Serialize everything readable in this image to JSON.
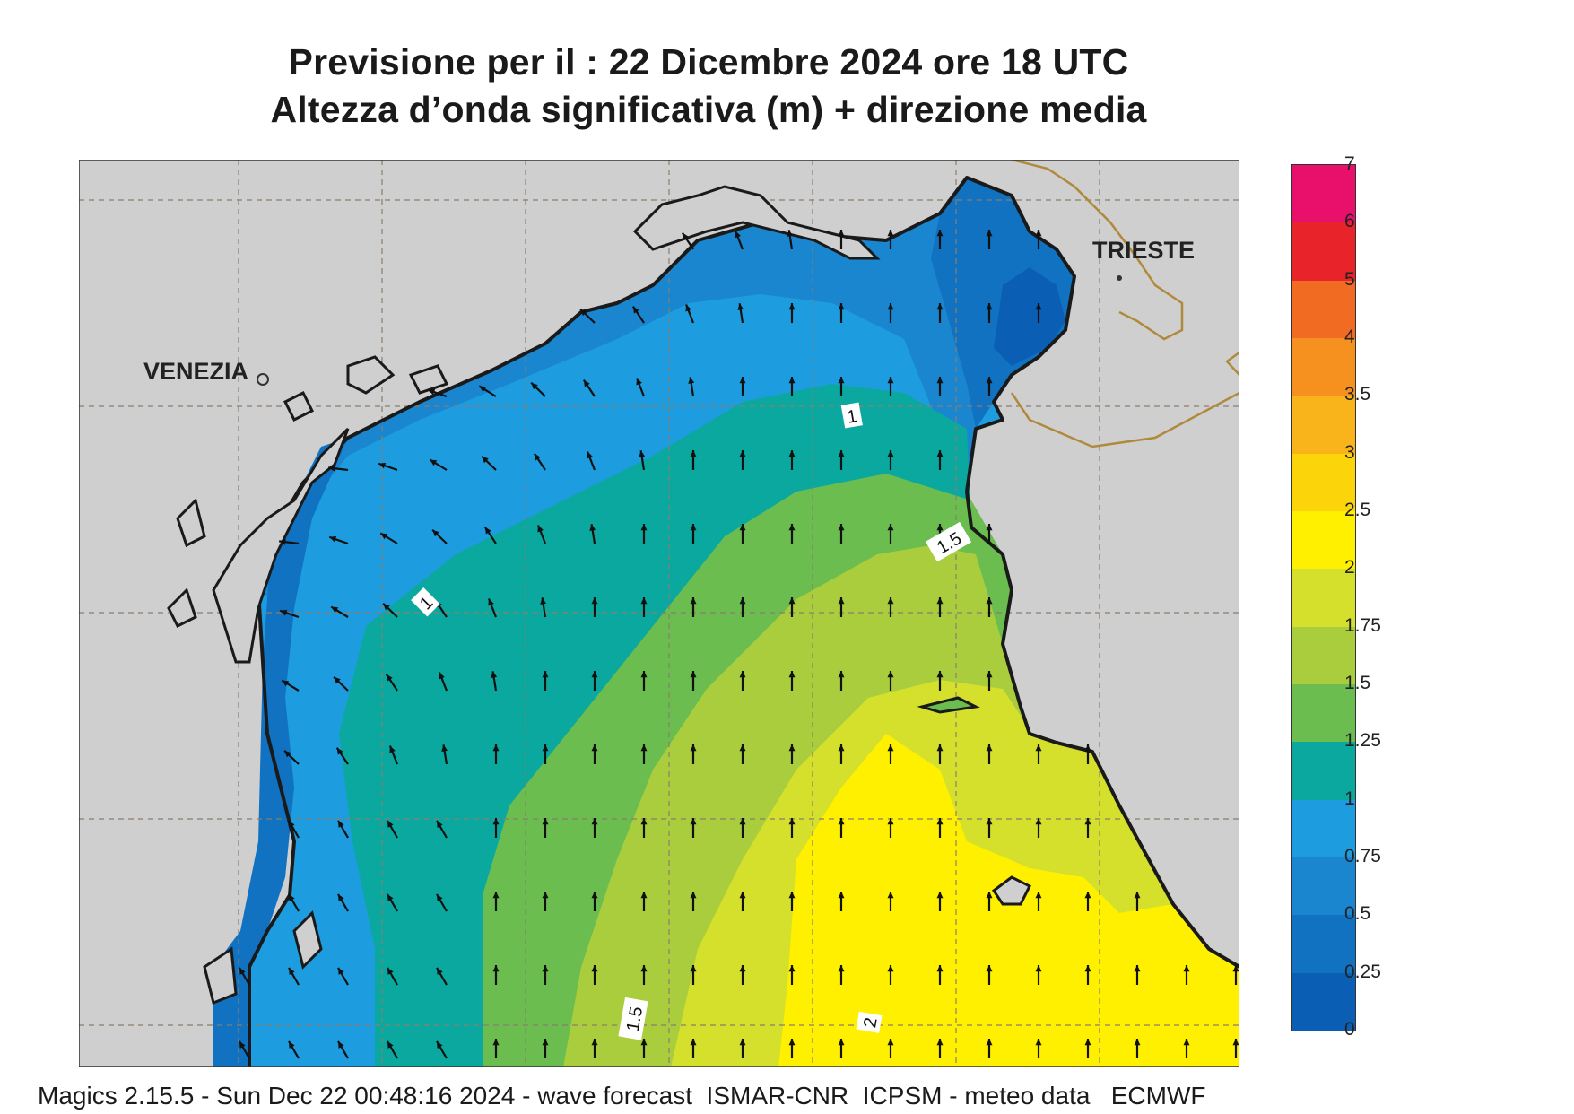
{
  "header": {
    "title_line1": "Previsione per il  :  22 Dicembre  2024   ore 18 UTC",
    "title_line2": "Altezza d’onda significativa (m) + direzione media"
  },
  "map": {
    "labels": {
      "venezia": "VENEZIA",
      "trieste": "TRIESTE"
    },
    "contour_labels": [
      "1",
      "1",
      "1.5",
      "1.5",
      "2"
    ],
    "colors": {
      "land": "#cfcfcf",
      "sea_deep": "#0a5fb4",
      "c025": "#1072c0",
      "c05": "#1a86d0",
      "c075": "#1d9ddf",
      "c1": "#0aa89e",
      "c125": "#6abd4e",
      "c15": "#a9cd3c",
      "c175": "#d5e02c",
      "c2": "#fff000",
      "coast": "#1a1a1a",
      "border": "#b08a3c"
    }
  },
  "legend": {
    "labels": [
      "7",
      "6",
      "5",
      "4",
      "3.5",
      "3",
      "2.5",
      "2",
      "1.75",
      "1.5",
      "1.25",
      "1",
      "0.75",
      "0.5",
      "0.25",
      "0"
    ],
    "colors": [
      "#e8106a",
      "#e8232a",
      "#f26b22",
      "#f6901e",
      "#f8b41a",
      "#fbd40a",
      "#fff000",
      "#d5e02c",
      "#a9cd3c",
      "#6abd4e",
      "#0aa89e",
      "#1d9ddf",
      "#1a86d0",
      "#1072c0",
      "#0a5fb4"
    ]
  },
  "footer": {
    "text": "Magics 2.15.5 - Sun Dec 22 00:48:16 2024 - wave forecast  ISMAR-CNR  ICPSM - meteo data   ECMWF"
  }
}
